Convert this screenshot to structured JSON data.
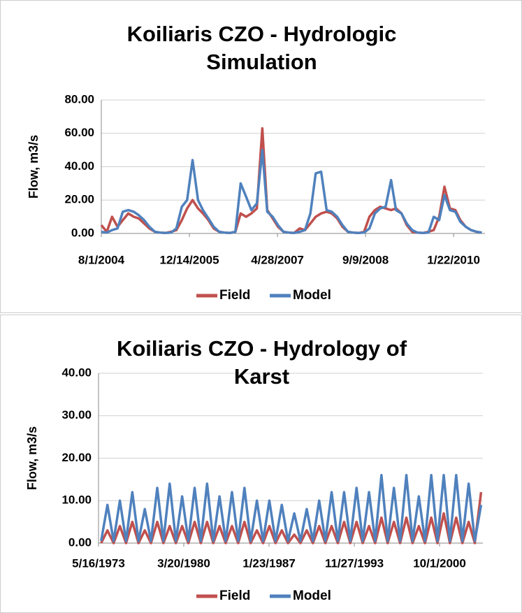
{
  "chart_data": [
    {
      "type": "line",
      "title": "Koiliaris CZO - Hydrologic Simulation",
      "y_label": "Flow, m3/s",
      "legend": "bottom",
      "grid": true,
      "x": [
        "8/1/2004",
        "9/1/2004",
        "10/1/2004",
        "11/1/2004",
        "12/1/2004",
        "1/1/2005",
        "2/1/2005",
        "3/1/2005",
        "4/1/2005",
        "5/1/2005",
        "6/1/2005",
        "7/1/2005",
        "8/1/2005",
        "9/1/2005",
        "10/1/2005",
        "11/1/2005",
        "12/1/2005",
        "1/1/2006",
        "2/1/2006",
        "3/1/2006",
        "4/1/2006",
        "5/1/2006",
        "6/1/2006",
        "7/1/2006",
        "8/1/2006",
        "9/1/2006",
        "10/1/2006",
        "11/1/2006",
        "12/1/2006",
        "1/1/2007",
        "2/1/2007",
        "3/1/2007",
        "4/1/2007",
        "5/1/2007",
        "6/1/2007",
        "7/1/2007",
        "8/1/2007",
        "9/1/2007",
        "10/1/2007",
        "11/1/2007",
        "12/1/2007",
        "1/1/2008",
        "2/1/2008",
        "3/1/2008",
        "4/1/2008",
        "5/1/2008",
        "6/1/2008",
        "7/1/2008",
        "8/1/2008",
        "9/1/2008",
        "10/1/2008",
        "11/1/2008",
        "12/1/2008",
        "1/1/2009",
        "2/1/2009",
        "3/1/2009",
        "4/1/2009",
        "5/1/2009",
        "6/1/2009",
        "7/1/2009",
        "8/1/2009",
        "9/1/2009",
        "10/1/2009",
        "11/1/2009",
        "12/1/2009",
        "1/1/2010",
        "2/1/2010",
        "3/1/2010",
        "4/1/2010",
        "5/1/2010",
        "6/1/2010",
        "7/1/2010"
      ],
      "series": [
        {
          "name": "Field",
          "color": "#c0504d",
          "values": [
            5,
            1,
            10,
            4,
            8,
            12,
            10,
            9,
            6,
            3,
            1,
            0.5,
            0.3,
            1,
            2,
            8,
            15,
            20,
            15,
            12,
            8,
            3,
            1,
            0.5,
            0.3,
            1,
            12,
            10,
            12,
            15,
            63,
            14,
            9,
            4,
            1,
            0.5,
            0.3,
            3,
            2,
            6,
            10,
            12,
            13,
            12,
            9,
            4,
            1,
            0.5,
            0.3,
            1,
            10,
            14,
            16,
            15,
            14,
            15,
            12,
            5,
            1,
            0.5,
            0.3,
            1,
            2,
            10,
            28,
            15,
            14,
            8,
            4,
            2,
            1,
            0.5
          ]
        },
        {
          "name": "Model",
          "color": "#4f81bd",
          "values": [
            1,
            0.5,
            2,
            3,
            13,
            14,
            13,
            11,
            8,
            4,
            1,
            0.5,
            0.3,
            0.5,
            3,
            16,
            20,
            44,
            20,
            14,
            9,
            4,
            1,
            0.5,
            0.3,
            1,
            30,
            22,
            14,
            18,
            50,
            13,
            10,
            5,
            1,
            0.5,
            0.3,
            1,
            2,
            12,
            36,
            37,
            14,
            13,
            10,
            5,
            1,
            0.5,
            0.3,
            0.5,
            3,
            12,
            15,
            16,
            32,
            14,
            12,
            6,
            2,
            0.5,
            0.3,
            0.5,
            10,
            8,
            23,
            14,
            13,
            7,
            4,
            2,
            1,
            0.5
          ]
        }
      ],
      "xlim": [
        "8/1/2004",
        "7/19/2010"
      ],
      "xticks": [
        "8/1/2004",
        "12/14/2005",
        "4/28/2007",
        "9/9/2008",
        "1/22/2010"
      ],
      "ylim": [
        0,
        80
      ],
      "yticks": [
        {
          "value": 0,
          "label": "0.00"
        },
        {
          "value": 20,
          "label": "20.00"
        },
        {
          "value": 40,
          "label": "40.00"
        },
        {
          "value": 60,
          "label": "60.00"
        },
        {
          "value": 80,
          "label": "80.00"
        }
      ]
    },
    {
      "type": "line",
      "title": "Koiliaris CZO - Hydrology of Karst",
      "y_label": "Flow, m3/s",
      "legend": "bottom",
      "grid": true,
      "x": [
        "8/1/1973",
        "2/1/1974",
        "8/1/1974",
        "2/1/1975",
        "8/1/1975",
        "2/1/1976",
        "8/1/1976",
        "2/1/1977",
        "8/1/1977",
        "2/1/1978",
        "8/1/1978",
        "2/1/1979",
        "8/1/1979",
        "2/1/1980",
        "8/1/1980",
        "2/1/1981",
        "8/1/1981",
        "2/1/1982",
        "8/1/1982",
        "2/1/1983",
        "8/1/1983",
        "2/1/1984",
        "8/1/1984",
        "2/1/1985",
        "8/1/1985",
        "2/1/1986",
        "8/1/1986",
        "2/1/1987",
        "8/1/1987",
        "2/1/1988",
        "8/1/1988",
        "2/1/1989",
        "8/1/1989",
        "2/1/1990",
        "8/1/1990",
        "2/1/1991",
        "8/1/1991",
        "2/1/1992",
        "8/1/1992",
        "2/1/1993",
        "8/1/1993",
        "2/1/1994",
        "8/1/1994",
        "2/1/1995",
        "8/1/1995",
        "2/1/1996",
        "8/1/1996",
        "2/1/1997",
        "8/1/1997",
        "2/1/1998",
        "8/1/1998",
        "2/1/1999",
        "8/1/1999",
        "2/1/2000",
        "8/1/2000",
        "2/1/2001",
        "8/1/2001",
        "2/1/2002",
        "8/1/2002",
        "2/1/2003",
        "8/1/2003",
        "2/1/2004"
      ],
      "series": [
        {
          "name": "Field",
          "color": "#c0504d",
          "values": [
            0,
            3,
            0,
            4,
            0,
            5,
            0,
            3,
            0,
            5,
            0,
            4,
            0,
            4,
            0,
            5,
            0,
            5,
            0,
            4,
            0,
            4,
            0,
            5,
            0,
            3,
            0,
            4,
            0,
            3,
            0,
            2,
            0,
            3,
            0,
            4,
            0,
            4,
            0,
            5,
            0,
            5,
            0,
            4,
            0,
            6,
            0,
            5,
            0,
            6,
            0,
            4,
            0,
            6,
            0,
            7,
            0,
            6,
            0,
            5,
            0,
            12
          ]
        },
        {
          "name": "Model",
          "color": "#4f81bd",
          "values": [
            0.5,
            9,
            0.5,
            10,
            0.5,
            12,
            0.5,
            8,
            0.5,
            13,
            0.5,
            14,
            0.5,
            11,
            0.5,
            13,
            0.5,
            14,
            0.5,
            11,
            0.5,
            12,
            0.5,
            13,
            0.5,
            10,
            0.5,
            10,
            0.5,
            9,
            0.5,
            7,
            0.5,
            8,
            0.5,
            10,
            0.5,
            12,
            0.5,
            12,
            0.5,
            13,
            0.5,
            12,
            0.5,
            16,
            0.5,
            13,
            0.5,
            16,
            0.5,
            11,
            0.5,
            16,
            0.5,
            16,
            0.5,
            16,
            0.5,
            14,
            0.5,
            9
          ]
        }
      ],
      "xlim": [
        "5/16/1973",
        "3/24/2004"
      ],
      "xticks": [
        "5/16/1973",
        "3/20/1980",
        "1/23/1987",
        "11/27/1993",
        "10/1/2000"
      ],
      "ylim": [
        0,
        40
      ],
      "yticks": [
        {
          "value": 0,
          "label": "0.00"
        },
        {
          "value": 10,
          "label": "10.00"
        },
        {
          "value": 20,
          "label": "20.00"
        },
        {
          "value": 30,
          "label": "30.00"
        },
        {
          "value": 40,
          "label": "40.00"
        }
      ]
    }
  ]
}
